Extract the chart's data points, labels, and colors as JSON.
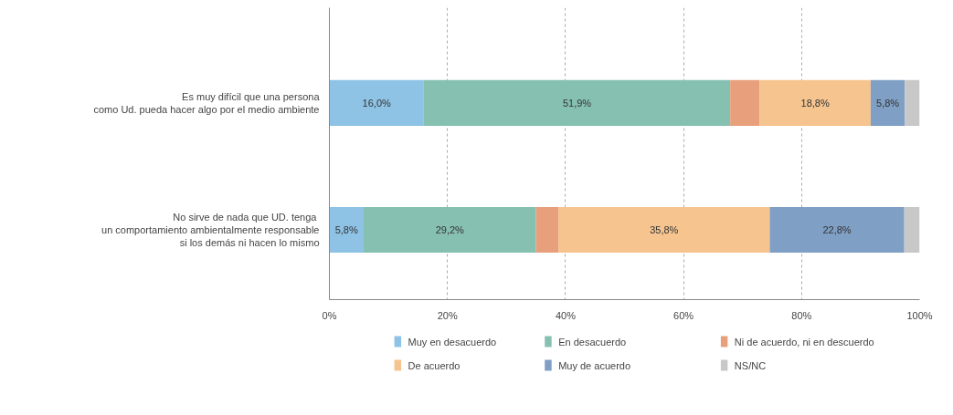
{
  "chart_data": {
    "type": "bar",
    "orientation": "horizontal",
    "stacked": true,
    "categories": [
      "Es muy difícil que una persona\ncomo Ud. pueda hacer algo por el medio ambiente",
      "No  sirve de nada que UD. tenga\nun comportamiento ambientalmente responsable\nsi los demás ni hacen lo mismo"
    ],
    "series": [
      {
        "name": "Muy en desacuerdo",
        "color": "#8ec3e6",
        "values": [
          16.0,
          5.8
        ],
        "value_labels": [
          "16,0%",
          "5,8%"
        ]
      },
      {
        "name": "En desacuerdo",
        "color": "#86c0b1",
        "values": [
          51.9,
          29.2
        ],
        "value_labels": [
          "51,9%",
          "29,2%"
        ]
      },
      {
        "name": "Ni de acuerdo, ni en descuerdo",
        "color": "#e8a07c",
        "values": [
          5.0,
          3.8
        ],
        "value_labels": [
          null,
          null
        ]
      },
      {
        "name": "De acuerdo",
        "color": "#f5c48f",
        "values": [
          18.8,
          35.8
        ],
        "value_labels": [
          "18,8%",
          "35,8%"
        ]
      },
      {
        "name": "Muy de acuerdo",
        "color": "#7f9fc4",
        "values": [
          5.8,
          22.8
        ],
        "value_labels": [
          "5,8%",
          "22,8%"
        ]
      },
      {
        "name": "NS/NC",
        "color": "#c8c8c8",
        "values": [
          2.5,
          2.6
        ],
        "value_labels": [
          null,
          null
        ]
      }
    ],
    "xlim": [
      0,
      100
    ],
    "xticks": [
      {
        "value": 0,
        "label": "0%"
      },
      {
        "value": 20,
        "label": "20%"
      },
      {
        "value": 40,
        "label": "40%"
      },
      {
        "value": 60,
        "label": "60%"
      },
      {
        "value": 80,
        "label": "80%"
      },
      {
        "value": 100,
        "label": "100%"
      }
    ],
    "grid": "x",
    "legend": "bottom"
  }
}
